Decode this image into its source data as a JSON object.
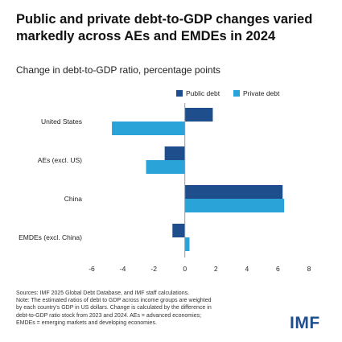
{
  "title": "Public and private debt-to-GDP changes varied markedly across AEs and EMDEs in 2024",
  "logo": "IMF",
  "note_lines": [
    "Sources: IMF 2025 Global Debt Database, and IMF staff calculations.",
    "Note: The estimated ratios of debt to GDP across income groups are weighted",
    "by each country's GDP in US dollars. Change is calculated by the difference in",
    "debt-to-GDP ratio stock from 2023 and 2024. AEs = advanced economies;",
    "EMDEs = emerging markets and developing economies."
  ],
  "colors": {
    "public": "#1f4e8c",
    "private": "#2aa3d8",
    "axis": "#999999"
  },
  "chart_data": {
    "type": "bar",
    "orientation": "horizontal",
    "title": "Change in debt-to-GDP ratio, percentage points",
    "categories": [
      "United States",
      "AEs (excl. US)",
      "China",
      "EMDEs (excl. China)"
    ],
    "series": [
      {
        "name": "Public debt",
        "values": [
          1.8,
          -1.3,
          6.3,
          -0.8
        ]
      },
      {
        "name": "Private debt",
        "values": [
          -4.7,
          -2.5,
          6.4,
          0.3
        ]
      }
    ],
    "xlim": [
      -6,
      8
    ],
    "xticks": [
      -6,
      -4,
      -2,
      0,
      2,
      4,
      6,
      8
    ],
    "legend_position": "top-right",
    "grid": false
  }
}
